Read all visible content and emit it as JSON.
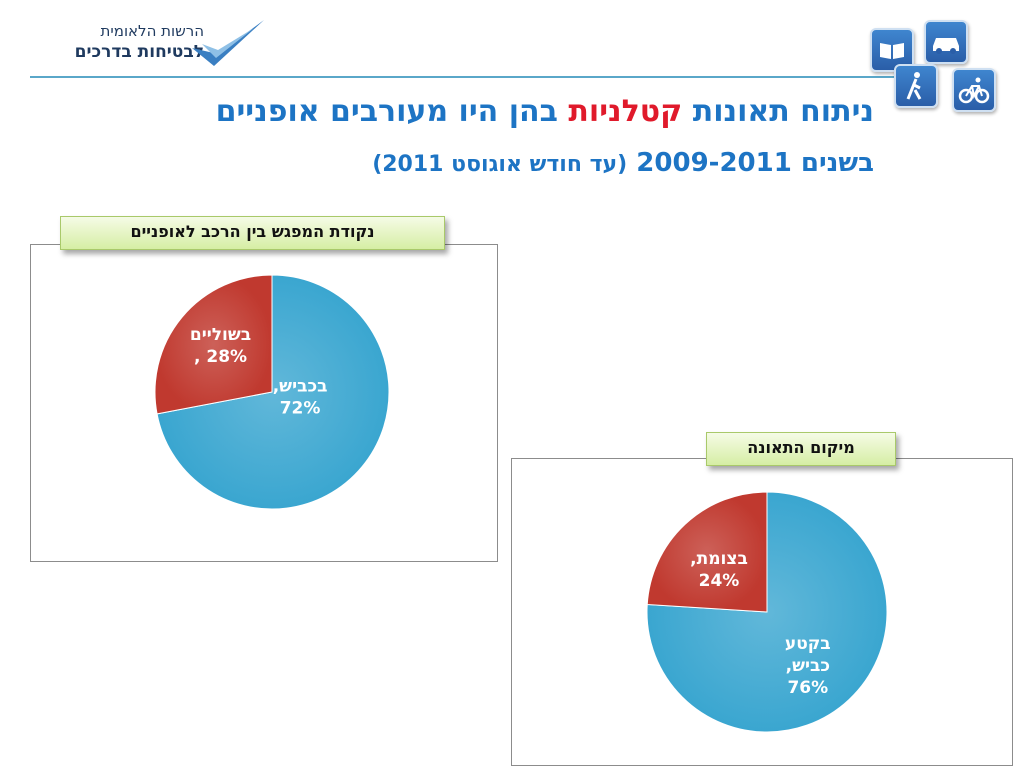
{
  "logo": {
    "line1": "הרשות הלאומית",
    "line2": "לבטיחות בדרכים"
  },
  "icons": [
    "book-icon",
    "car-icon",
    "pedestrian-icon",
    "bicycle-icon"
  ],
  "title": {
    "line1_part1": "ניתוח תאונות",
    "line1_highlight": "קטלניות",
    "line1_part2": "בהן היו מעורבים אופניים",
    "line2_main": "בשנים 2009-2011",
    "line2_sub": "(עד חודש אוגוסט 2011)"
  },
  "colors": {
    "title": "#1d74c4",
    "highlight": "#e01a2b",
    "slice_blue": "#3aa6d0",
    "slice_red": "#c0392f",
    "badge": "#d6eea4"
  },
  "chart_data": [
    {
      "type": "pie",
      "title": "נקודת המפגש בין הרכב לאופניים",
      "slices": [
        {
          "label_lines": [
            "בכביש,",
            "72%"
          ],
          "value": 72
        },
        {
          "label_lines": [
            "בשוליים",
            "28% ,"
          ],
          "value": 28
        }
      ]
    },
    {
      "type": "pie",
      "title": "מיקום התאונה",
      "slices": [
        {
          "label_lines": [
            "בקטע",
            "כביש,",
            "76%"
          ],
          "value": 76
        },
        {
          "label_lines": [
            "בצומת,",
            "24%"
          ],
          "value": 24
        }
      ]
    }
  ]
}
